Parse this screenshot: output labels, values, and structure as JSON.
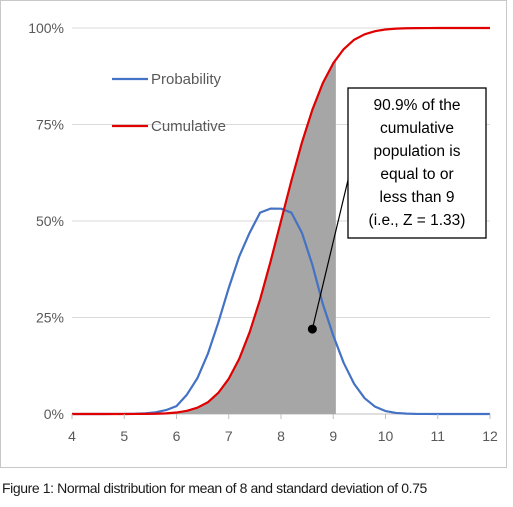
{
  "chart_data": {
    "type": "line",
    "x_ticks": [
      4,
      5,
      6,
      7,
      8,
      9,
      10,
      11,
      12
    ],
    "y_ticks": [
      "0%",
      "25%",
      "50%",
      "75%",
      "100%"
    ],
    "xlim": [
      4,
      12
    ],
    "ylim": [
      0,
      1
    ],
    "grid": "horizontal",
    "legend_position": "top-left",
    "series": [
      {
        "name": "Probability",
        "color": "#4472c4",
        "x": [
          4.0,
          4.2,
          4.4,
          4.6,
          4.8,
          5.0,
          5.2,
          5.4,
          5.6,
          5.8,
          6.0,
          6.2,
          6.4,
          6.6,
          6.8,
          7.0,
          7.2,
          7.4,
          7.6,
          7.8,
          8.0,
          8.2,
          8.4,
          8.6,
          8.8,
          9.0,
          9.2,
          9.4,
          9.6,
          9.8,
          10.0,
          10.2,
          10.4,
          10.6,
          10.8,
          11.0,
          11.2,
          11.4,
          11.6,
          11.8,
          12.0
        ],
        "y": [
          0.0,
          0.0,
          0.0,
          0.0,
          0.0001,
          0.0002,
          0.0006,
          0.0016,
          0.0043,
          0.0101,
          0.0205,
          0.0503,
          0.0929,
          0.1558,
          0.2369,
          0.3265,
          0.408,
          0.4697,
          0.5216,
          0.532,
          0.5319,
          0.5215,
          0.4697,
          0.3866,
          0.2851,
          0.2034,
          0.1323,
          0.078,
          0.041,
          0.019,
          0.0077,
          0.0028,
          0.0009,
          0.0002,
          0.0001,
          0.0,
          0.0,
          0.0,
          0.0,
          0.0,
          0.0
        ]
      },
      {
        "name": "Cumulative",
        "color": "#e00000",
        "x": [
          4.0,
          4.2,
          4.4,
          4.6,
          4.8,
          5.0,
          5.2,
          5.4,
          5.6,
          5.8,
          6.0,
          6.2,
          6.4,
          6.6,
          6.8,
          7.0,
          7.2,
          7.4,
          7.6,
          7.8,
          8.0,
          8.2,
          8.4,
          8.6,
          8.8,
          9.0,
          9.2,
          9.4,
          9.6,
          9.8,
          10.0,
          10.2,
          10.4,
          10.6,
          10.8,
          11.0,
          11.2,
          11.4,
          11.6,
          11.8,
          12.0
        ],
        "y": [
          0.0,
          0.0,
          0.0,
          0.0,
          0.0,
          0.0,
          0.0001,
          0.0003,
          0.0007,
          0.0016,
          0.0038,
          0.0082,
          0.0164,
          0.0304,
          0.0548,
          0.0912,
          0.1429,
          0.2119,
          0.2969,
          0.395,
          0.5,
          0.605,
          0.7031,
          0.7881,
          0.8571,
          0.9088,
          0.9452,
          0.9696,
          0.9836,
          0.9918,
          0.9962,
          0.9984,
          0.9993,
          0.9997,
          0.9999,
          1.0,
          1.0,
          1.0,
          1.0,
          1.0,
          1.0
        ]
      }
    ],
    "shaded_region": {
      "under": "Probability",
      "x_from": 4,
      "x_to": 9.05,
      "color": "#a6a6a6"
    },
    "callout": {
      "lines": [
        "90.9% of the",
        "cumulative",
        "population is",
        "equal to or",
        "less than 9",
        "(i.e., Z = 1.33)"
      ],
      "pointer_x": 8.6,
      "pointer_y": 0.22
    }
  },
  "caption": "Figure 1: Normal distribution for mean of 8 and standard deviation of 0.75"
}
